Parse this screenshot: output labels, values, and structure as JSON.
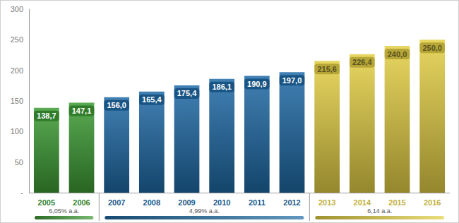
{
  "chart_data": {
    "type": "bar",
    "categories": [
      "2005",
      "2006",
      "2007",
      "2008",
      "2009",
      "2010",
      "2011",
      "2012",
      "2013",
      "2014",
      "2015",
      "2016"
    ],
    "values": [
      138.7,
      147.1,
      156.0,
      165.4,
      175.4,
      186.1,
      190.9,
      197.0,
      215.6,
      226.4,
      240.0,
      250.0
    ],
    "value_labels": [
      "138,7",
      "147,1",
      "156,0",
      "165,4",
      "175,4",
      "186,1",
      "190,9",
      "197,0",
      "215,6",
      "226,4",
      "240,0",
      "250,0"
    ],
    "colors": [
      "#3d9b35",
      "#3d9b35",
      "#1f6aa5",
      "#1f6aa5",
      "#1f6aa5",
      "#1f6aa5",
      "#1f6aa5",
      "#1f6aa5",
      "#e3cf45",
      "#e3cf45",
      "#e3cf45",
      "#e3cf45"
    ],
    "ylim": [
      0,
      300
    ],
    "yticks": [
      {
        "value": 0,
        "label": "-"
      },
      50,
      100,
      150,
      200,
      250,
      300
    ],
    "grid": false,
    "data_labels": true,
    "annotations": [
      {
        "label": "6,05% a.a.",
        "categories": [
          "2005",
          "2006"
        ],
        "color": "#3d9b35"
      },
      {
        "label": "4,99% a.a.",
        "categories": [
          "2007",
          "2012"
        ],
        "color": "#1f6aa5"
      },
      {
        "label": "6,14 a.a.",
        "categories": [
          "2013",
          "2016"
        ],
        "color": "#e3cf45"
      }
    ]
  }
}
